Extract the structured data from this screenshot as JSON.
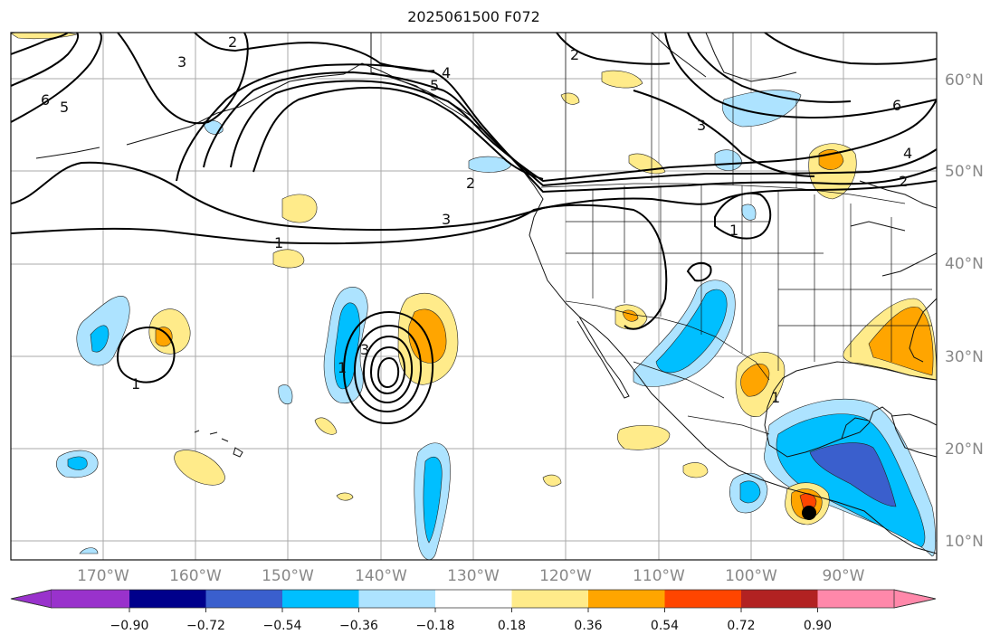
{
  "title": "2025061500 F072",
  "map": {
    "lon_labels": [
      "170°W",
      "160°W",
      "150°W",
      "140°W",
      "130°W",
      "120°W",
      "110°W",
      "100°W",
      "90°W"
    ],
    "lat_labels": [
      "60°N",
      "50°N",
      "40°N",
      "30°N",
      "20°N",
      "10°N"
    ],
    "contour_labels": [
      "6",
      "5",
      "4",
      "3",
      "2",
      "1",
      "2",
      "3",
      "4",
      "5",
      "6",
      "1",
      "3",
      "2",
      "1",
      "1",
      "3",
      "2",
      "1"
    ]
  },
  "colorbar": {
    "ticks": [
      "−0.90",
      "−0.72",
      "−0.54",
      "−0.36",
      "−0.18",
      "0.18",
      "0.36",
      "0.54",
      "0.72",
      "0.90"
    ],
    "colors": [
      "#9932cc",
      "#00008b",
      "#3a5fcd",
      "#00bfff",
      "#ade3ff",
      "#ffffff",
      "#ffeb8a",
      "#ffa500",
      "#ff4500",
      "#b22222",
      "#ff88aa"
    ]
  }
}
